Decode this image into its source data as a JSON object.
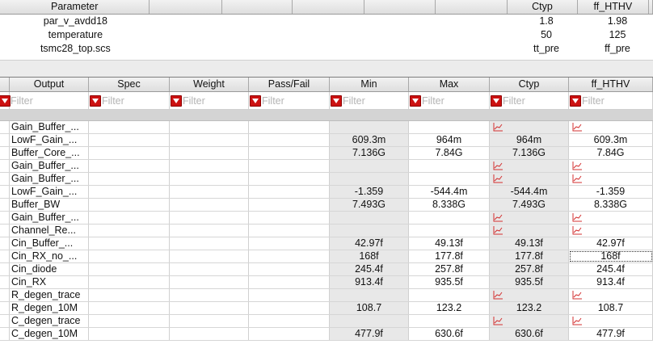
{
  "parameters": {
    "headers": [
      "Parameter",
      "",
      "",
      "",
      "",
      "",
      "Ctyp",
      "ff_HTHV"
    ],
    "rows": [
      {
        "name": "par_v_avdd18",
        "ctyp": "1.8",
        "ff_hthv": "1.98"
      },
      {
        "name": "temperature",
        "ctyp": "50",
        "ff_hthv": "125"
      },
      {
        "name": "tsmc28_top.scs",
        "ctyp": "tt_pre",
        "ff_hthv": "ff_pre"
      }
    ]
  },
  "outputs": {
    "headers": [
      "Output",
      "Spec",
      "Weight",
      "Pass/Fail",
      "Min",
      "Max",
      "Ctyp",
      "ff_HTHV"
    ],
    "filter_placeholder": "Filter",
    "icons": {
      "filter": "filter-dropdown-icon",
      "waveform": "waveform-plot-icon"
    },
    "colors": {
      "filter_button": "#cc1111",
      "waveform": "#d33030",
      "gray_column": "#e8e8e8"
    },
    "rows": [
      {
        "output": "Gain_Buffer_...",
        "min": "",
        "max": "",
        "ctyp": "",
        "ff_hthv": "",
        "wave": true
      },
      {
        "output": "LowF_Gain_...",
        "min": "609.3m",
        "max": "964m",
        "ctyp": "964m",
        "ff_hthv": "609.3m",
        "wave": false
      },
      {
        "output": "Buffer_Core_...",
        "min": "7.136G",
        "max": "7.84G",
        "ctyp": "7.136G",
        "ff_hthv": "7.84G",
        "wave": false
      },
      {
        "output": "Gain_Buffer_...",
        "min": "",
        "max": "",
        "ctyp": "",
        "ff_hthv": "",
        "wave": true
      },
      {
        "output": "Gain_Buffer_...",
        "min": "",
        "max": "",
        "ctyp": "",
        "ff_hthv": "",
        "wave": true
      },
      {
        "output": "LowF_Gain_...",
        "min": "-1.359",
        "max": "-544.4m",
        "ctyp": "-544.4m",
        "ff_hthv": "-1.359",
        "wave": false
      },
      {
        "output": "Buffer_BW",
        "min": "7.493G",
        "max": "8.338G",
        "ctyp": "7.493G",
        "ff_hthv": "8.338G",
        "wave": false
      },
      {
        "output": "Gain_Buffer_...",
        "min": "",
        "max": "",
        "ctyp": "",
        "ff_hthv": "",
        "wave": true
      },
      {
        "output": "Channel_Re...",
        "min": "",
        "max": "",
        "ctyp": "",
        "ff_hthv": "",
        "wave": true
      },
      {
        "output": "Cin_Buffer_...",
        "min": "42.97f",
        "max": "49.13f",
        "ctyp": "49.13f",
        "ff_hthv": "42.97f",
        "wave": false
      },
      {
        "output": "Cin_RX_no_...",
        "min": "168f",
        "max": "177.8f",
        "ctyp": "177.8f",
        "ff_hthv": "168f",
        "wave": false,
        "selected": true
      },
      {
        "output": "Cin_diode",
        "min": "245.4f",
        "max": "257.8f",
        "ctyp": "257.8f",
        "ff_hthv": "245.4f",
        "wave": false
      },
      {
        "output": "Cin_RX",
        "min": "913.4f",
        "max": "935.5f",
        "ctyp": "935.5f",
        "ff_hthv": "913.4f",
        "wave": false
      },
      {
        "output": "R_degen_trace",
        "min": "",
        "max": "",
        "ctyp": "",
        "ff_hthv": "",
        "wave": true
      },
      {
        "output": "R_degen_10M",
        "min": "108.7",
        "max": "123.2",
        "ctyp": "123.2",
        "ff_hthv": "108.7",
        "wave": false
      },
      {
        "output": "C_degen_trace",
        "min": "",
        "max": "",
        "ctyp": "",
        "ff_hthv": "",
        "wave": true
      },
      {
        "output": "C_degen_10M",
        "min": "477.9f",
        "max": "630.6f",
        "ctyp": "630.6f",
        "ff_hthv": "477.9f",
        "wave": false
      }
    ]
  }
}
